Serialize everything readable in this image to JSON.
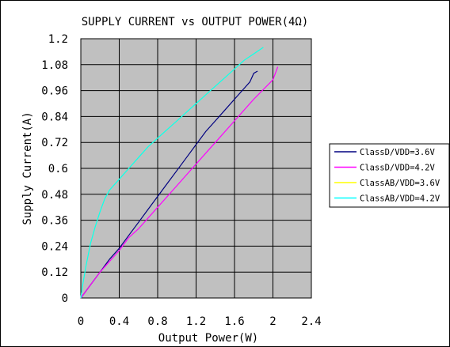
{
  "chart_data": {
    "type": "line",
    "title": "SUPPLY CURRENT vs OUTPUT POWER(4Ω)",
    "xlabel": "Output Power(W)",
    "ylabel": "Supply Current(A)",
    "xlim": [
      0,
      2.4
    ],
    "ylim": [
      0,
      1.2
    ],
    "x_ticks": [
      "0",
      "0.4",
      "0.8",
      "1.2",
      "1.6",
      "2",
      "2.4"
    ],
    "y_ticks": [
      "0",
      "0.12",
      "0.24",
      "0.36",
      "0.48",
      "0.6",
      "0.72",
      "0.84",
      "0.96",
      "1.08",
      "1.2"
    ],
    "grid": true,
    "plot_background": "#c0c0c0",
    "legend_position": "right",
    "series": [
      {
        "name": "ClassD/VDD=3.6V",
        "color": "#000080",
        "points": [
          [
            0,
            0
          ],
          [
            0.1,
            0.06
          ],
          [
            0.2,
            0.12
          ],
          [
            0.3,
            0.18
          ],
          [
            0.4,
            0.23
          ],
          [
            0.5,
            0.29
          ],
          [
            0.6,
            0.35
          ],
          [
            0.7,
            0.41
          ],
          [
            0.8,
            0.47
          ],
          [
            0.9,
            0.53
          ],
          [
            1.0,
            0.59
          ],
          [
            1.1,
            0.65
          ],
          [
            1.2,
            0.71
          ],
          [
            1.3,
            0.77
          ],
          [
            1.4,
            0.82
          ],
          [
            1.5,
            0.87
          ],
          [
            1.6,
            0.92
          ],
          [
            1.7,
            0.97
          ],
          [
            1.76,
            1.0
          ],
          [
            1.8,
            1.04
          ],
          [
            1.84,
            1.05
          ]
        ]
      },
      {
        "name": "ClassD/VDD=4.2V",
        "color": "#ff00ff",
        "points": [
          [
            0,
            0
          ],
          [
            0.2,
            0.12
          ],
          [
            0.4,
            0.22
          ],
          [
            0.5,
            0.28
          ],
          [
            0.6,
            0.32
          ],
          [
            0.8,
            0.42
          ],
          [
            1.0,
            0.52
          ],
          [
            1.2,
            0.62
          ],
          [
            1.4,
            0.72
          ],
          [
            1.6,
            0.82
          ],
          [
            1.8,
            0.92
          ],
          [
            2.0,
            1.01
          ],
          [
            2.05,
            1.07
          ]
        ]
      },
      {
        "name": "ClassAB/VDD=3.6V",
        "color": "#ffff00",
        "points": [
          [
            0,
            0
          ],
          [
            0.02,
            0.06
          ],
          [
            0.05,
            0.14
          ],
          [
            0.1,
            0.25
          ],
          [
            0.15,
            0.33
          ],
          [
            0.2,
            0.4
          ],
          [
            0.25,
            0.46
          ],
          [
            0.3,
            0.5
          ],
          [
            0.4,
            0.55
          ],
          [
            0.5,
            0.6
          ],
          [
            0.6,
            0.65
          ],
          [
            0.7,
            0.7
          ],
          [
            0.8,
            0.74
          ],
          [
            0.9,
            0.78
          ],
          [
            1.0,
            0.82
          ],
          [
            1.1,
            0.86
          ],
          [
            1.2,
            0.9
          ],
          [
            1.3,
            0.94
          ],
          [
            1.4,
            0.98
          ],
          [
            1.5,
            1.02
          ],
          [
            1.6,
            1.06
          ],
          [
            1.7,
            1.1
          ],
          [
            1.8,
            1.13
          ],
          [
            1.9,
            1.16
          ]
        ]
      },
      {
        "name": "ClassAB/VDD=4.2V",
        "color": "#00ffff",
        "points": [
          [
            0,
            0
          ],
          [
            0.02,
            0.06
          ],
          [
            0.05,
            0.14
          ],
          [
            0.1,
            0.25
          ],
          [
            0.15,
            0.33
          ],
          [
            0.2,
            0.4
          ],
          [
            0.25,
            0.46
          ],
          [
            0.3,
            0.5
          ],
          [
            0.4,
            0.55
          ],
          [
            0.5,
            0.6
          ],
          [
            0.6,
            0.65
          ],
          [
            0.7,
            0.7
          ],
          [
            0.8,
            0.74
          ],
          [
            0.9,
            0.78
          ],
          [
            1.0,
            0.82
          ],
          [
            1.1,
            0.86
          ],
          [
            1.2,
            0.9
          ],
          [
            1.3,
            0.94
          ],
          [
            1.4,
            0.98
          ],
          [
            1.5,
            1.02
          ],
          [
            1.6,
            1.06
          ],
          [
            1.7,
            1.1
          ],
          [
            1.8,
            1.13
          ],
          [
            1.9,
            1.16
          ]
        ]
      }
    ]
  }
}
